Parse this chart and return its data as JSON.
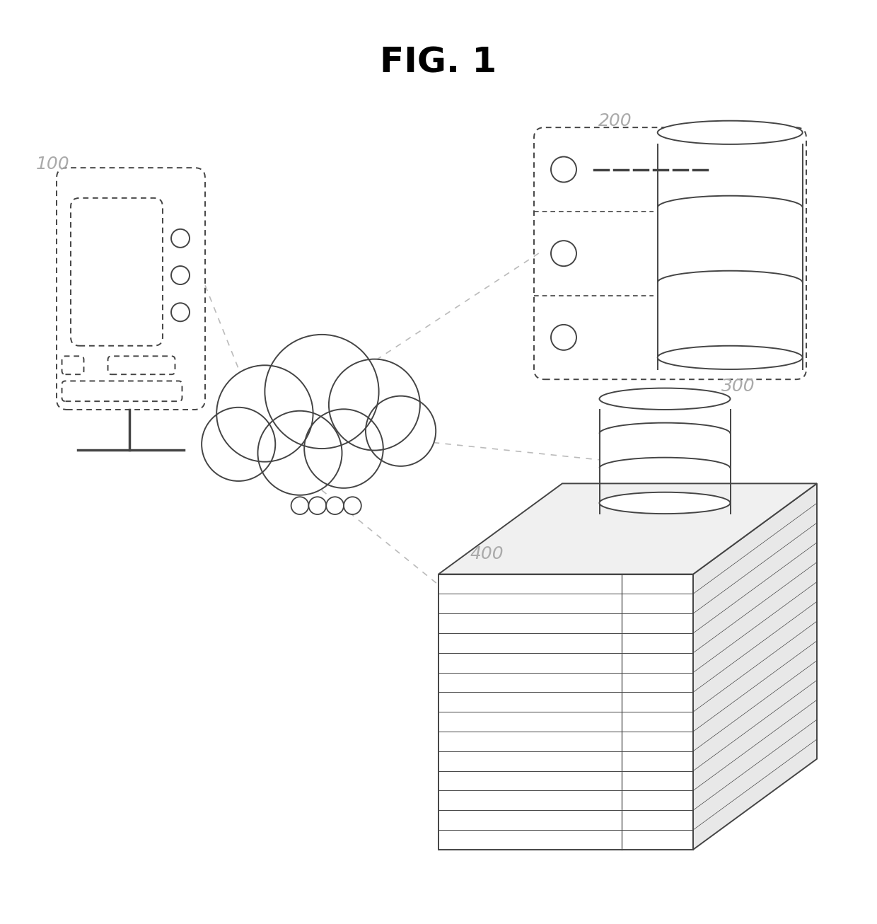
{
  "title": "FIG. 1",
  "title_fontsize": 36,
  "title_fontweight": "bold",
  "bg": "#ffffff",
  "lc": "#444444",
  "lc_light": "#888888",
  "label_color": "#aaaaaa",
  "label_fontsize": 18,
  "dash_color": "#bbbbbb",
  "label_100": "100",
  "label_200": "200",
  "label_300": "300",
  "label_400": "400",
  "figw": 12.4,
  "figh": 13.06,
  "dpi": 100
}
